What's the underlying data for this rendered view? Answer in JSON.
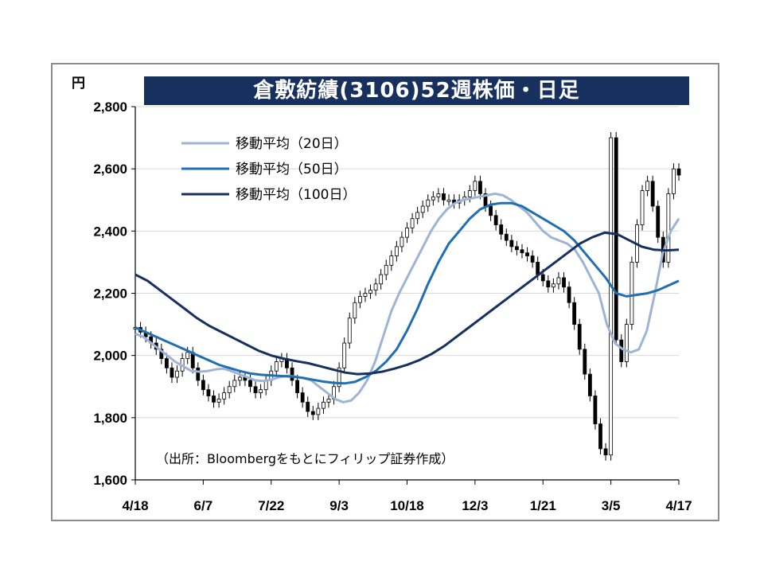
{
  "chart_data": {
    "type": "line",
    "title": "倉敷紡績(3106)52週株価・日足",
    "y_unit": "円",
    "ylim": [
      1600,
      2800
    ],
    "y_ticks": [
      "1,600",
      "1,800",
      "2,000",
      "2,200",
      "2,400",
      "2,600",
      "2,800"
    ],
    "y_tick_values": [
      1600,
      1800,
      2000,
      2200,
      2400,
      2600,
      2800
    ],
    "x_tick_labels": [
      "4/18",
      "6/7",
      "7/22",
      "9/3",
      "10/18",
      "12/3",
      "1/21",
      "3/5",
      "4/17"
    ],
    "grid": true,
    "legend_position": "top-left",
    "source_note": "（出所：Bloombergをもとにフィリップ証券作成）",
    "price_series": {
      "name": "日足",
      "type": "candlestick",
      "x": [
        "4/18",
        "6/7",
        "7/22",
        "9/3",
        "10/18",
        "12/3",
        "1/21",
        "3/5",
        "4/17"
      ],
      "close_at_ticks": [
        2090,
        1850,
        1850,
        1860,
        2320,
        2520,
        2330,
        1700,
        2580
      ],
      "points": [
        2090,
        2075,
        2060,
        2040,
        2020,
        1990,
        1960,
        1930,
        1950,
        1990,
        2010,
        1960,
        1920,
        1890,
        1870,
        1850,
        1860,
        1880,
        1900,
        1920,
        1930,
        1920,
        1900,
        1880,
        1890,
        1920,
        1950,
        1980,
        1990,
        1960,
        1920,
        1880,
        1850,
        1820,
        1810,
        1830,
        1850,
        1860,
        1900,
        1960,
        2040,
        2120,
        2170,
        2190,
        2200,
        2210,
        2230,
        2260,
        2290,
        2320,
        2350,
        2380,
        2410,
        2440,
        2460,
        2480,
        2500,
        2510,
        2520,
        2500,
        2500,
        2490,
        2500,
        2510,
        2530,
        2560,
        2520,
        2480,
        2450,
        2420,
        2390,
        2370,
        2350,
        2340,
        2330,
        2320,
        2300,
        2260,
        2240,
        2220,
        2230,
        2250,
        2220,
        2170,
        2100,
        2020,
        1940,
        1870,
        1780,
        1700,
        1680,
        2700,
        2050,
        1980,
        2100,
        2300,
        2420,
        2530,
        2560,
        2480,
        2380,
        2300,
        2520,
        2600,
        2580
      ]
    },
    "series": [
      {
        "name": "移動平均（20日）",
        "color": "#9db4d6",
        "x_ticks": [
          "4/18",
          "6/7",
          "7/22",
          "9/3",
          "10/18",
          "12/3",
          "1/21",
          "3/5",
          "4/17"
        ],
        "values": [
          2070,
          1950,
          1930,
          1850,
          2260,
          2500,
          2380,
          2020,
          2440
        ],
        "points": [
          2070,
          2060,
          2040,
          2020,
          2000,
          1980,
          1965,
          1950,
          1948,
          1950,
          1955,
          1958,
          1950,
          1940,
          1930,
          1920,
          1918,
          1922,
          1930,
          1935,
          1932,
          1928,
          1920,
          1900,
          1880,
          1860,
          1850,
          1855,
          1880,
          1920,
          1980,
          2060,
          2140,
          2200,
          2250,
          2300,
          2350,
          2400,
          2440,
          2470,
          2490,
          2500,
          2505,
          2510,
          2515,
          2520,
          2515,
          2500,
          2480,
          2460,
          2430,
          2400,
          2380,
          2370,
          2360,
          2340,
          2300,
          2250,
          2200,
          2100,
          2040,
          2020,
          2010,
          2020,
          2080,
          2200,
          2330,
          2400,
          2440
        ]
      },
      {
        "name": "移動平均（50日）",
        "color": "#1f6fb2",
        "x_ticks": [
          "4/18",
          "6/7",
          "7/22",
          "9/3",
          "10/18",
          "12/3",
          "1/21",
          "3/5",
          "4/17"
        ],
        "values": [
          2090,
          2010,
          1940,
          1910,
          2020,
          2380,
          2460,
          2260,
          2240
        ],
        "points": [
          2090,
          2075,
          2060,
          2045,
          2030,
          2015,
          2000,
          1985,
          1970,
          1960,
          1950,
          1942,
          1938,
          1936,
          1934,
          1932,
          1928,
          1922,
          1916,
          1912,
          1910,
          1915,
          1930,
          1950,
          1980,
          2020,
          2080,
          2150,
          2230,
          2300,
          2360,
          2400,
          2440,
          2470,
          2485,
          2490,
          2490,
          2480,
          2460,
          2440,
          2420,
          2400,
          2370,
          2330,
          2290,
          2250,
          2200,
          2190,
          2195,
          2200,
          2210,
          2225,
          2240
        ]
      },
      {
        "name": "移動平均（100日）",
        "color": "#17305e",
        "x_ticks": [
          "4/18",
          "6/7",
          "7/22",
          "9/3",
          "10/18",
          "12/3",
          "1/21",
          "3/5",
          "4/17"
        ],
        "values": [
          2260,
          2110,
          1990,
          1940,
          2010,
          2150,
          2340,
          2380,
          2340
        ],
        "points": [
          2260,
          2240,
          2210,
          2180,
          2150,
          2120,
          2095,
          2075,
          2055,
          2035,
          2015,
          2000,
          1990,
          1982,
          1975,
          1965,
          1955,
          1945,
          1940,
          1942,
          1948,
          1958,
          1970,
          1985,
          2005,
          2030,
          2060,
          2090,
          2120,
          2150,
          2180,
          2210,
          2240,
          2270,
          2300,
          2330,
          2360,
          2380,
          2395,
          2390,
          2370,
          2350,
          2340,
          2338,
          2340
        ]
      }
    ]
  }
}
